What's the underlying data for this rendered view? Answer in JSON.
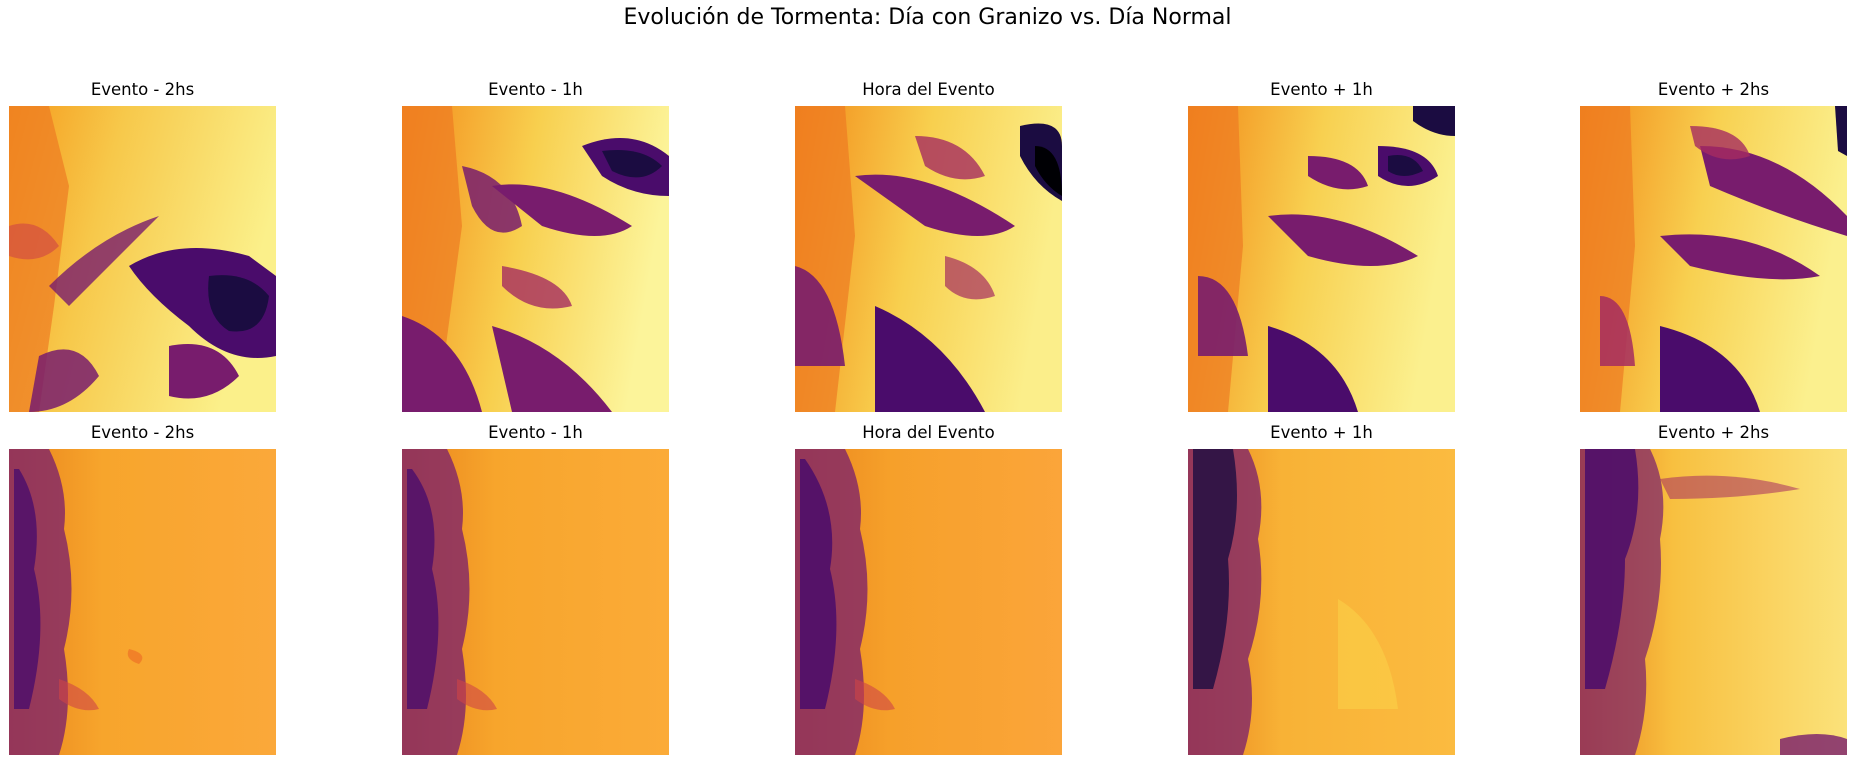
{
  "figure": {
    "title": "Evolución de Tormenta: Día con Granizo vs. Día Normal"
  },
  "panel_titles": [
    "Evento - 2hs",
    "Evento - 1h",
    "Hora del Evento",
    "Evento + 1h",
    "Evento + 2hs"
  ],
  "rows": [
    {
      "name": "hail-day",
      "panels": [
        {
          "title": "Evento - 2hs"
        },
        {
          "title": "Evento - 1h"
        },
        {
          "title": "Hora del Evento"
        },
        {
          "title": "Evento + 1h"
        },
        {
          "title": "Evento + 2hs"
        }
      ]
    },
    {
      "name": "normal-day",
      "panels": [
        {
          "title": "Evento - 2hs"
        },
        {
          "title": "Evento - 1h"
        },
        {
          "title": "Hora del Evento"
        },
        {
          "title": "Evento + 1h"
        },
        {
          "title": "Evento + 2hs"
        }
      ]
    }
  ],
  "colormap": {
    "name": "inferno",
    "stops": [
      "#fcffa4",
      "#f7d13d",
      "#fb9b06",
      "#ed6925",
      "#cf4446",
      "#a52c60",
      "#781c6d",
      "#4a0c6b",
      "#1b0c41",
      "#000004"
    ]
  }
}
